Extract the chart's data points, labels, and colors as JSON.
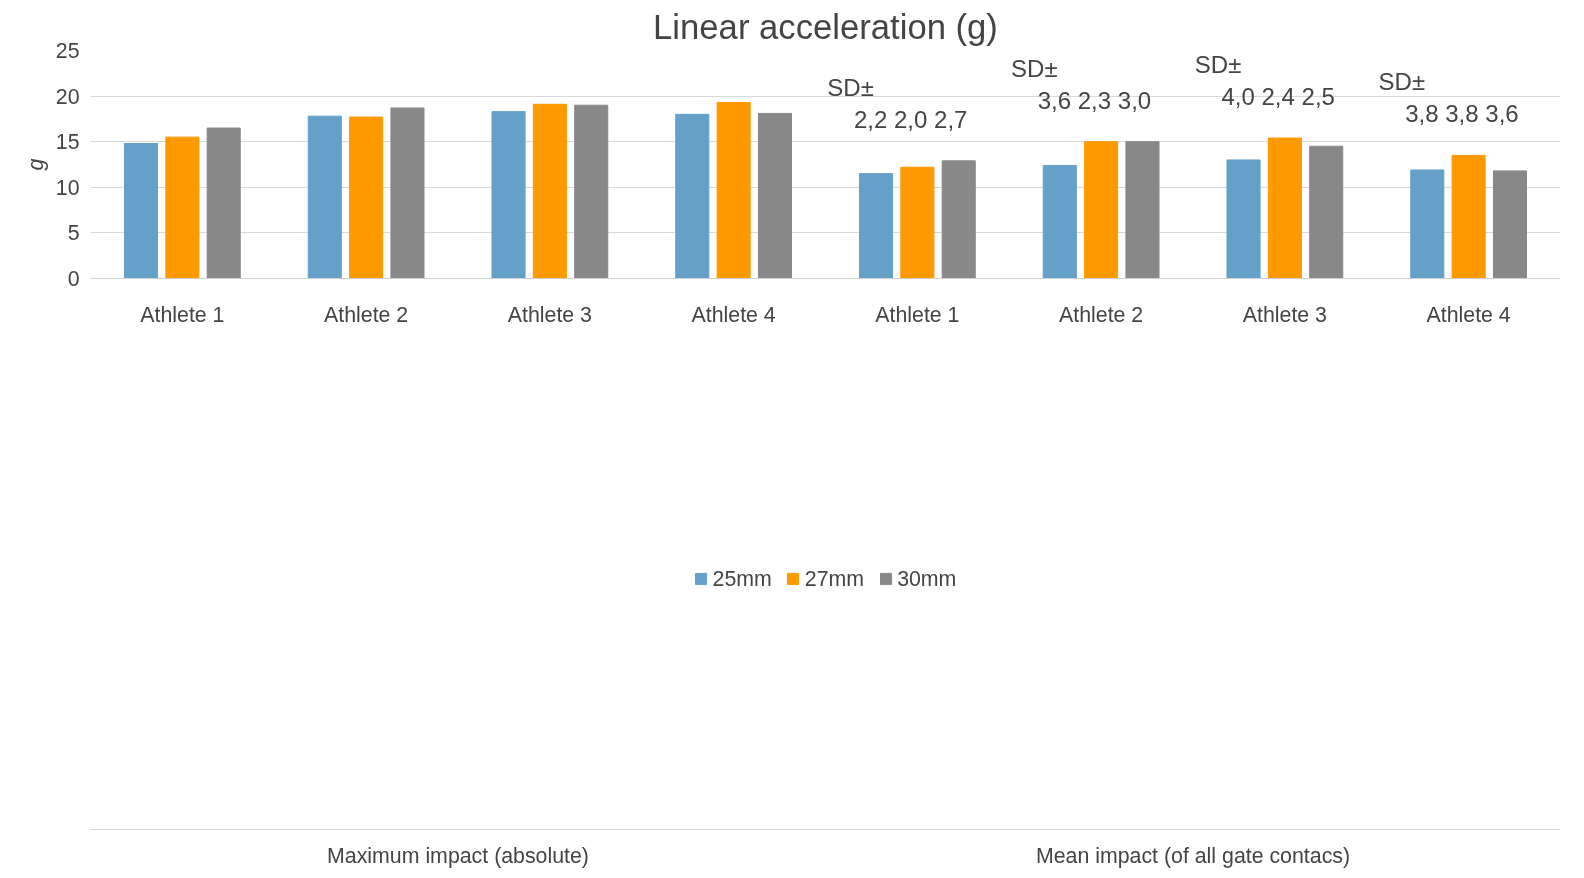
{
  "chart_data": {
    "type": "bar",
    "title": "Linear acceleration (g)",
    "ylabel": "g",
    "categories": [
      "Athlete 1",
      "Athlete 2",
      "Athlete 3",
      "Athlete 4",
      "Athlete 1",
      "Athlete 2",
      "Athlete 3",
      "Athlete 4"
    ],
    "series": [
      {
        "name": "25mm",
        "color": "#64a0c8",
        "values": [
          14.8,
          17.8,
          18.3,
          18.0,
          11.5,
          12.4,
          13.0,
          11.9
        ]
      },
      {
        "name": "27mm",
        "color": "#ff9900",
        "values": [
          15.5,
          17.7,
          19.1,
          19.3,
          12.2,
          15.0,
          15.4,
          13.5
        ]
      },
      {
        "name": "30mm",
        "color": "#888888",
        "values": [
          16.5,
          18.7,
          19.0,
          18.1,
          12.9,
          15.0,
          14.5,
          11.8
        ]
      }
    ],
    "ylim": [
      0,
      25
    ],
    "yticks": [
      0,
      5,
      10,
      15,
      20,
      25
    ],
    "grid": "y",
    "legend": "bottom",
    "annotations": [
      "Maximum impact (absolute)",
      "Mean impact (of all gate contacs)",
      "SD±",
      "2,2  2,0  2,7",
      "SD±",
      "3,6  2,3  3,0",
      "SD±",
      "4,0  2,4  2,5",
      "SD±",
      "3,8  3,8  3,6"
    ]
  }
}
